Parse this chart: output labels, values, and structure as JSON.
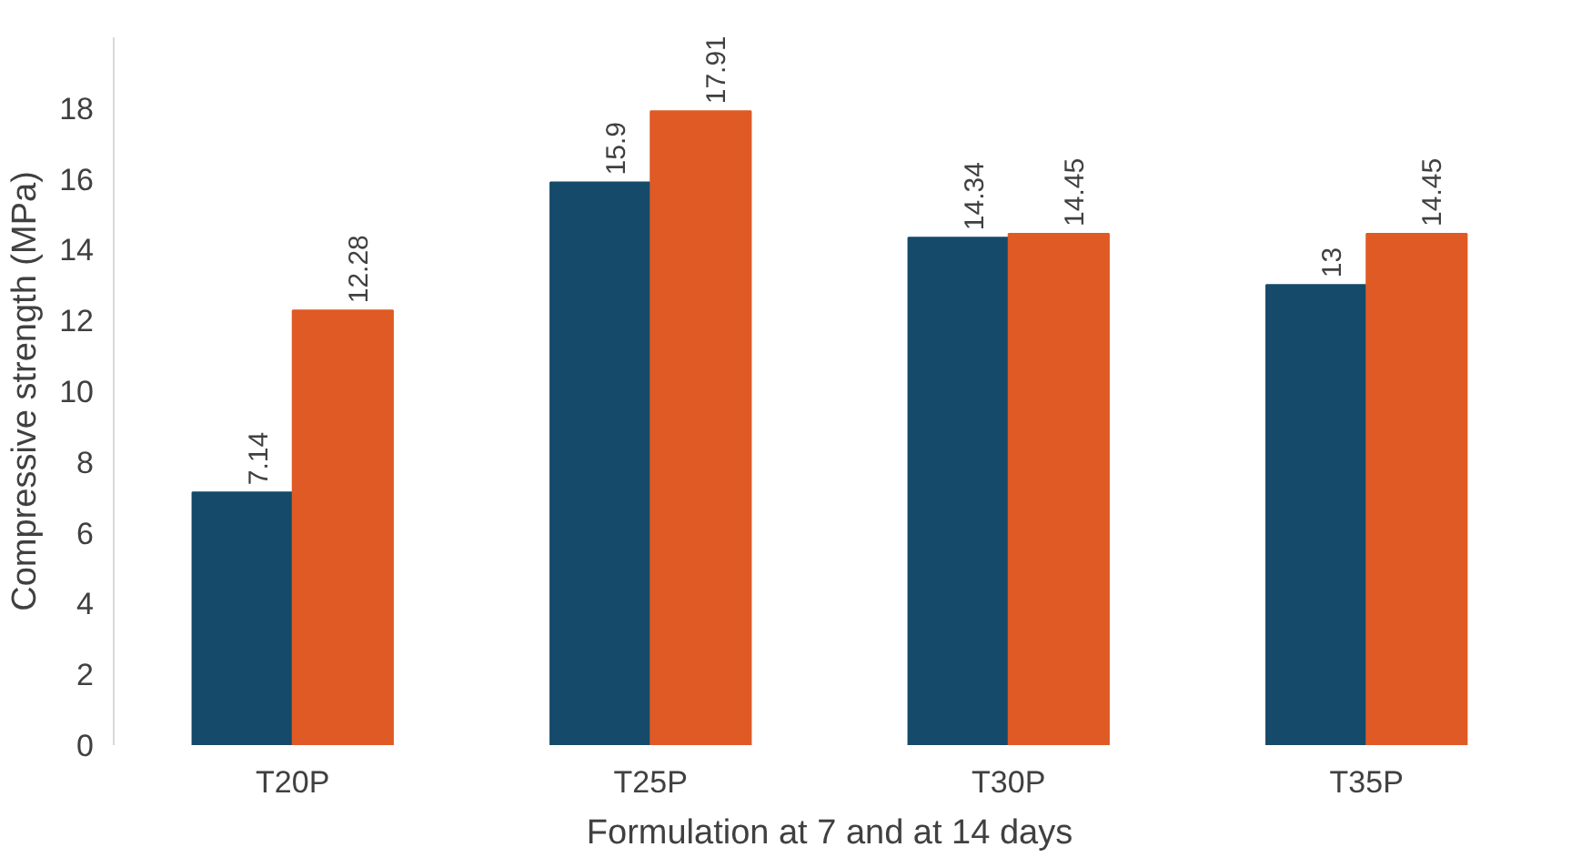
{
  "chart_data": {
    "type": "bar",
    "xlabel": "Formulation at 7 and at 14 days",
    "ylabel": "Compressive strength (MPa)",
    "categories": [
      "T20P",
      "T25P",
      "T30P",
      "T35P"
    ],
    "series": [
      {
        "color": "#154a6a",
        "values": [
          7.14,
          15.9,
          14.34,
          13
        ]
      },
      {
        "color": "#e05a25",
        "values": [
          12.28,
          17.91,
          14.45,
          14.45
        ]
      }
    ],
    "ylim": [
      0,
      20
    ],
    "yticks": [
      0,
      2,
      4,
      6,
      8,
      10,
      12,
      14,
      16,
      18
    ],
    "grid": false,
    "data_labels": true
  }
}
